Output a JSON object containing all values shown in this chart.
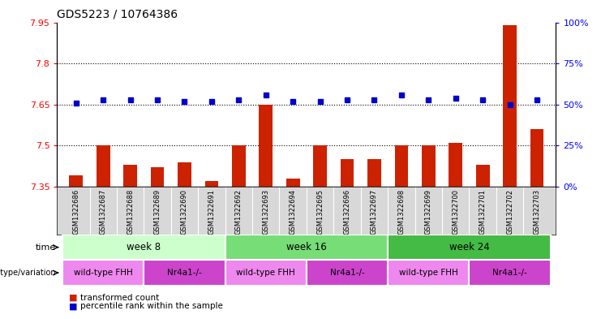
{
  "title": "GDS5223 / 10764386",
  "samples": [
    "GSM1322686",
    "GSM1322687",
    "GSM1322688",
    "GSM1322689",
    "GSM1322690",
    "GSM1322691",
    "GSM1322692",
    "GSM1322693",
    "GSM1322694",
    "GSM1322695",
    "GSM1322696",
    "GSM1322697",
    "GSM1322698",
    "GSM1322699",
    "GSM1322700",
    "GSM1322701",
    "GSM1322702",
    "GSM1322703"
  ],
  "red_values": [
    7.39,
    7.5,
    7.43,
    7.42,
    7.44,
    7.37,
    7.5,
    7.65,
    7.38,
    7.5,
    7.45,
    7.45,
    7.5,
    7.5,
    7.51,
    7.43,
    7.94,
    7.56
  ],
  "blue_values": [
    51,
    53,
    53,
    53,
    52,
    52,
    53,
    56,
    52,
    52,
    53,
    53,
    56,
    53,
    54,
    53,
    50,
    53
  ],
  "ylim_left": [
    7.35,
    7.95
  ],
  "ylim_right": [
    0,
    100
  ],
  "yticks_left": [
    7.35,
    7.5,
    7.65,
    7.8,
    7.95
  ],
  "yticks_right": [
    0,
    25,
    50,
    75,
    100
  ],
  "hlines": [
    7.5,
    7.65,
    7.8
  ],
  "time_groups": [
    {
      "label": "week 8",
      "start": 0,
      "end": 5,
      "color": "#ccffcc"
    },
    {
      "label": "week 16",
      "start": 6,
      "end": 11,
      "color": "#77dd77"
    },
    {
      "label": "week 24",
      "start": 12,
      "end": 17,
      "color": "#44bb44"
    }
  ],
  "genotype_groups": [
    {
      "label": "wild-type FHH",
      "start": 0,
      "end": 2,
      "color": "#ee88ee"
    },
    {
      "label": "Nr4a1-/-",
      "start": 3,
      "end": 5,
      "color": "#cc44cc"
    },
    {
      "label": "wild-type FHH",
      "start": 6,
      "end": 8,
      "color": "#ee88ee"
    },
    {
      "label": "Nr4a1-/-",
      "start": 9,
      "end": 11,
      "color": "#cc44cc"
    },
    {
      "label": "wild-type FHH",
      "start": 12,
      "end": 14,
      "color": "#ee88ee"
    },
    {
      "label": "Nr4a1-/-",
      "start": 15,
      "end": 17,
      "color": "#cc44cc"
    }
  ],
  "bar_color": "#cc2200",
  "dot_color": "#0000cc",
  "bar_width": 0.5,
  "sample_bg": "#d8d8d8",
  "plot_bg": "#ffffff",
  "left_label_color": "red",
  "right_label_color": "blue"
}
